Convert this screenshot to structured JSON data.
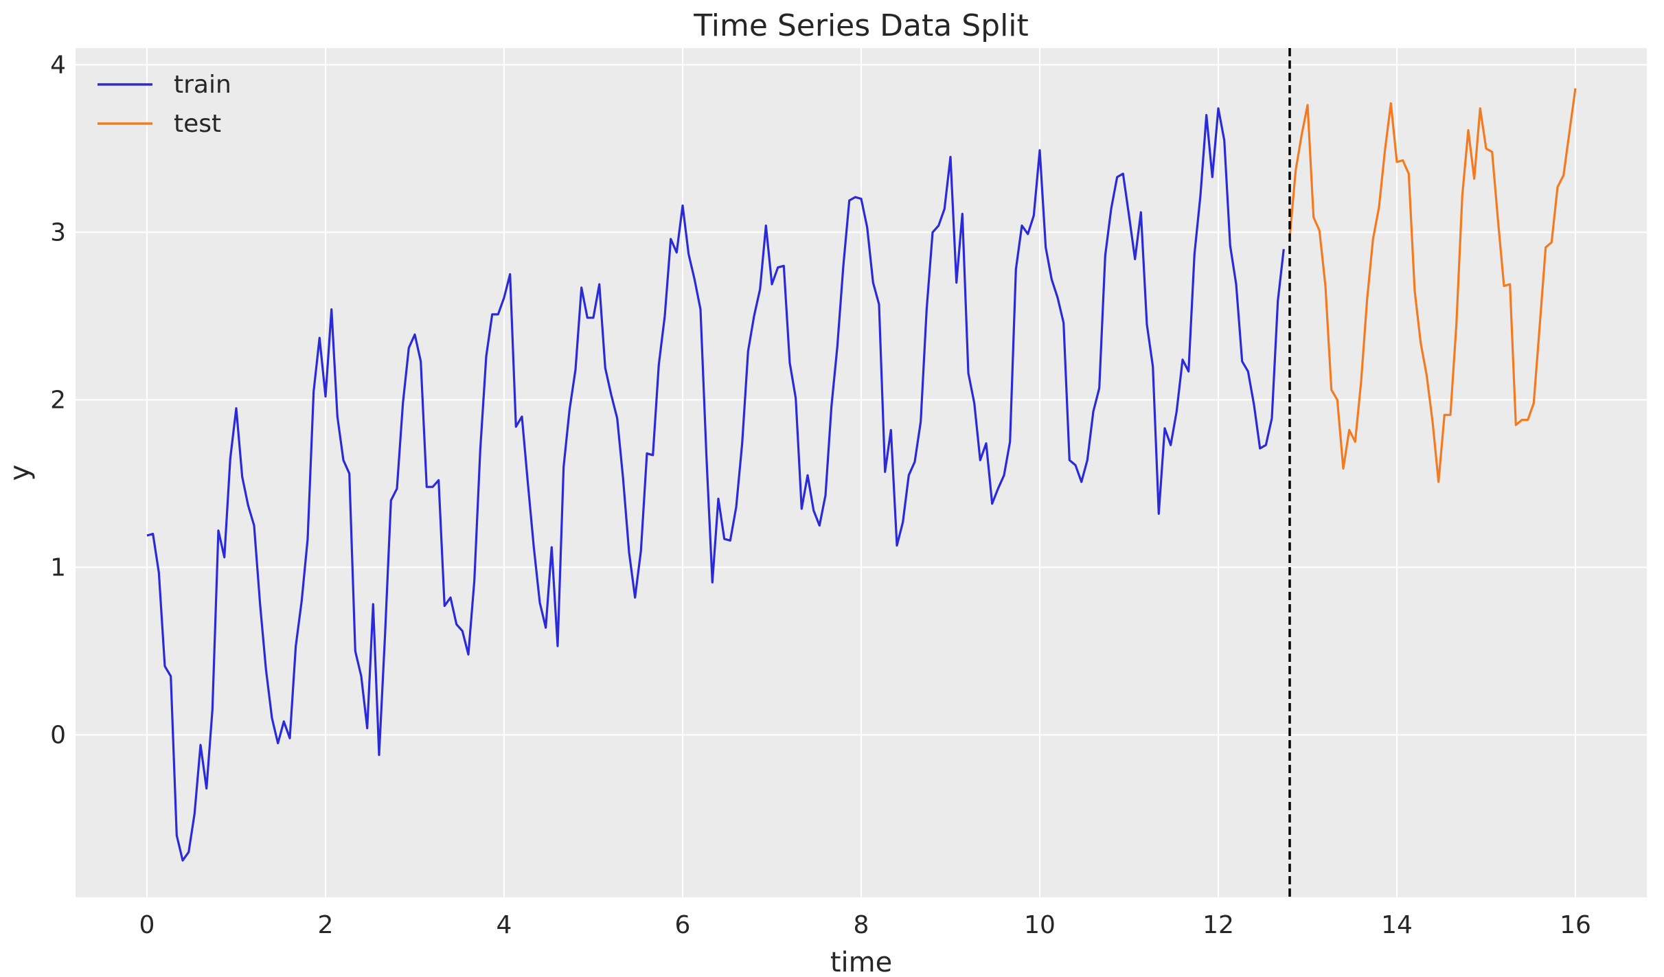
{
  "chart_data": {
    "type": "line",
    "title": "Time Series Data Split",
    "xlabel": "time",
    "ylabel": "y",
    "xlim": [
      -0.8,
      16.8
    ],
    "ylim": [
      -0.97,
      4.1
    ],
    "xticks": [
      0,
      2,
      4,
      6,
      8,
      10,
      12,
      14,
      16
    ],
    "yticks": [
      0,
      1,
      2,
      3,
      4
    ],
    "grid": true,
    "legend_position": "upper-left",
    "split_line": {
      "x": 12.8,
      "style": "dashed",
      "color": "#000000"
    },
    "series": [
      {
        "name": "train",
        "color": "#2a2ad8",
        "points": [
          [
            0.0,
            1.19
          ],
          [
            0.067,
            1.2
          ],
          [
            0.133,
            0.97
          ],
          [
            0.2,
            0.41
          ],
          [
            0.267,
            0.35
          ],
          [
            0.333,
            -0.6
          ],
          [
            0.4,
            -0.75
          ],
          [
            0.467,
            -0.7
          ],
          [
            0.533,
            -0.47
          ],
          [
            0.6,
            -0.06
          ],
          [
            0.667,
            -0.32
          ],
          [
            0.733,
            0.15
          ],
          [
            0.8,
            1.22
          ],
          [
            0.867,
            1.06
          ],
          [
            0.933,
            1.65
          ],
          [
            1.0,
            1.95
          ],
          [
            1.067,
            1.54
          ],
          [
            1.133,
            1.37
          ],
          [
            1.2,
            1.25
          ],
          [
            1.267,
            0.78
          ],
          [
            1.333,
            0.39
          ],
          [
            1.4,
            0.1
          ],
          [
            1.467,
            -0.05
          ],
          [
            1.533,
            0.08
          ],
          [
            1.6,
            -0.02
          ],
          [
            1.667,
            0.53
          ],
          [
            1.733,
            0.8
          ],
          [
            1.8,
            1.17
          ],
          [
            1.867,
            2.05
          ],
          [
            1.933,
            2.37
          ],
          [
            2.0,
            2.02
          ],
          [
            2.067,
            2.54
          ],
          [
            2.133,
            1.9
          ],
          [
            2.2,
            1.64
          ],
          [
            2.267,
            1.56
          ],
          [
            2.333,
            0.5
          ],
          [
            2.4,
            0.35
          ],
          [
            2.467,
            0.04
          ],
          [
            2.533,
            0.78
          ],
          [
            2.6,
            -0.12
          ],
          [
            2.667,
            0.6
          ],
          [
            2.733,
            1.4
          ],
          [
            2.8,
            1.47
          ],
          [
            2.867,
            1.98
          ],
          [
            2.933,
            2.31
          ],
          [
            3.0,
            2.39
          ],
          [
            3.067,
            2.23
          ],
          [
            3.133,
            1.48
          ],
          [
            3.2,
            1.48
          ],
          [
            3.267,
            1.52
          ],
          [
            3.333,
            0.77
          ],
          [
            3.4,
            0.82
          ],
          [
            3.467,
            0.66
          ],
          [
            3.533,
            0.62
          ],
          [
            3.6,
            0.48
          ],
          [
            3.667,
            0.92
          ],
          [
            3.733,
            1.7
          ],
          [
            3.8,
            2.26
          ],
          [
            3.867,
            2.51
          ],
          [
            3.933,
            2.51
          ],
          [
            4.0,
            2.61
          ],
          [
            4.067,
            2.75
          ],
          [
            4.133,
            1.84
          ],
          [
            4.2,
            1.9
          ],
          [
            4.267,
            1.5
          ],
          [
            4.333,
            1.12
          ],
          [
            4.4,
            0.79
          ],
          [
            4.467,
            0.64
          ],
          [
            4.533,
            1.12
          ],
          [
            4.6,
            0.53
          ],
          [
            4.667,
            1.6
          ],
          [
            4.733,
            1.94
          ],
          [
            4.8,
            2.18
          ],
          [
            4.867,
            2.67
          ],
          [
            4.933,
            2.49
          ],
          [
            5.0,
            2.49
          ],
          [
            5.067,
            2.69
          ],
          [
            5.133,
            2.19
          ],
          [
            5.2,
            2.03
          ],
          [
            5.267,
            1.89
          ],
          [
            5.333,
            1.53
          ],
          [
            5.4,
            1.09
          ],
          [
            5.467,
            0.82
          ],
          [
            5.533,
            1.1
          ],
          [
            5.6,
            1.68
          ],
          [
            5.667,
            1.67
          ],
          [
            5.733,
            2.21
          ],
          [
            5.8,
            2.5
          ],
          [
            5.867,
            2.96
          ],
          [
            5.933,
            2.88
          ],
          [
            6.0,
            3.16
          ],
          [
            6.067,
            2.87
          ],
          [
            6.133,
            2.72
          ],
          [
            6.2,
            2.54
          ],
          [
            6.267,
            1.66
          ],
          [
            6.333,
            0.91
          ],
          [
            6.4,
            1.41
          ],
          [
            6.467,
            1.17
          ],
          [
            6.533,
            1.16
          ],
          [
            6.6,
            1.36
          ],
          [
            6.667,
            1.74
          ],
          [
            6.733,
            2.29
          ],
          [
            6.8,
            2.5
          ],
          [
            6.867,
            2.66
          ],
          [
            6.933,
            3.04
          ],
          [
            7.0,
            2.69
          ],
          [
            7.067,
            2.79
          ],
          [
            7.133,
            2.8
          ],
          [
            7.2,
            2.22
          ],
          [
            7.267,
            2.01
          ],
          [
            7.333,
            1.35
          ],
          [
            7.4,
            1.55
          ],
          [
            7.467,
            1.34
          ],
          [
            7.533,
            1.25
          ],
          [
            7.6,
            1.43
          ],
          [
            7.667,
            1.96
          ],
          [
            7.733,
            2.32
          ],
          [
            7.8,
            2.8
          ],
          [
            7.867,
            3.19
          ],
          [
            7.933,
            3.21
          ],
          [
            8.0,
            3.2
          ],
          [
            8.067,
            3.03
          ],
          [
            8.133,
            2.7
          ],
          [
            8.2,
            2.57
          ],
          [
            8.267,
            1.57
          ],
          [
            8.333,
            1.82
          ],
          [
            8.4,
            1.13
          ],
          [
            8.467,
            1.27
          ],
          [
            8.533,
            1.55
          ],
          [
            8.6,
            1.63
          ],
          [
            8.667,
            1.87
          ],
          [
            8.733,
            2.54
          ],
          [
            8.8,
            3.0
          ],
          [
            8.867,
            3.04
          ],
          [
            8.933,
            3.14
          ],
          [
            9.0,
            3.45
          ],
          [
            9.067,
            2.7
          ],
          [
            9.133,
            3.11
          ],
          [
            9.2,
            2.16
          ],
          [
            9.267,
            1.98
          ],
          [
            9.333,
            1.64
          ],
          [
            9.4,
            1.74
          ],
          [
            9.467,
            1.38
          ],
          [
            9.533,
            1.47
          ],
          [
            9.6,
            1.55
          ],
          [
            9.667,
            1.75
          ],
          [
            9.733,
            2.78
          ],
          [
            9.8,
            3.04
          ],
          [
            9.867,
            2.99
          ],
          [
            9.933,
            3.1
          ],
          [
            10.0,
            3.49
          ],
          [
            10.067,
            2.91
          ],
          [
            10.133,
            2.72
          ],
          [
            10.2,
            2.61
          ],
          [
            10.267,
            2.46
          ],
          [
            10.333,
            1.64
          ],
          [
            10.4,
            1.61
          ],
          [
            10.467,
            1.51
          ],
          [
            10.533,
            1.64
          ],
          [
            10.6,
            1.93
          ],
          [
            10.667,
            2.07
          ],
          [
            10.733,
            2.86
          ],
          [
            10.8,
            3.14
          ],
          [
            10.867,
            3.33
          ],
          [
            10.933,
            3.35
          ],
          [
            11.0,
            3.1
          ],
          [
            11.067,
            2.84
          ],
          [
            11.133,
            3.12
          ],
          [
            11.2,
            2.45
          ],
          [
            11.267,
            2.2
          ],
          [
            11.333,
            1.32
          ],
          [
            11.4,
            1.83
          ],
          [
            11.467,
            1.73
          ],
          [
            11.533,
            1.93
          ],
          [
            11.6,
            2.24
          ],
          [
            11.667,
            2.17
          ],
          [
            11.733,
            2.87
          ],
          [
            11.8,
            3.22
          ],
          [
            11.867,
            3.7
          ],
          [
            11.933,
            3.33
          ],
          [
            12.0,
            3.74
          ],
          [
            12.067,
            3.55
          ],
          [
            12.133,
            2.92
          ],
          [
            12.2,
            2.69
          ],
          [
            12.267,
            2.23
          ],
          [
            12.333,
            2.17
          ],
          [
            12.4,
            1.97
          ],
          [
            12.467,
            1.71
          ],
          [
            12.533,
            1.73
          ],
          [
            12.6,
            1.89
          ],
          [
            12.667,
            2.59
          ],
          [
            12.733,
            2.9
          ]
        ]
      },
      {
        "name": "test",
        "color": "#f47a20",
        "points": [
          [
            12.8,
            2.97
          ],
          [
            12.867,
            3.37
          ],
          [
            12.933,
            3.58
          ],
          [
            13.0,
            3.76
          ],
          [
            13.067,
            3.09
          ],
          [
            13.133,
            3.01
          ],
          [
            13.2,
            2.68
          ],
          [
            13.267,
            2.06
          ],
          [
            13.333,
            2.0
          ],
          [
            13.4,
            1.59
          ],
          [
            13.467,
            1.82
          ],
          [
            13.533,
            1.75
          ],
          [
            13.6,
            2.11
          ],
          [
            13.667,
            2.6
          ],
          [
            13.733,
            2.96
          ],
          [
            13.8,
            3.15
          ],
          [
            13.867,
            3.49
          ],
          [
            13.933,
            3.77
          ],
          [
            14.0,
            3.42
          ],
          [
            14.067,
            3.43
          ],
          [
            14.133,
            3.35
          ],
          [
            14.2,
            2.65
          ],
          [
            14.267,
            2.34
          ],
          [
            14.333,
            2.15
          ],
          [
            14.4,
            1.87
          ],
          [
            14.467,
            1.51
          ],
          [
            14.533,
            1.91
          ],
          [
            14.6,
            1.91
          ],
          [
            14.667,
            2.45
          ],
          [
            14.733,
            3.22
          ],
          [
            14.8,
            3.61
          ],
          [
            14.867,
            3.32
          ],
          [
            14.933,
            3.74
          ],
          [
            15.0,
            3.5
          ],
          [
            15.067,
            3.48
          ],
          [
            15.133,
            3.07
          ],
          [
            15.2,
            2.68
          ],
          [
            15.267,
            2.69
          ],
          [
            15.333,
            1.85
          ],
          [
            15.4,
            1.88
          ],
          [
            15.467,
            1.88
          ],
          [
            15.533,
            1.98
          ],
          [
            15.6,
            2.44
          ],
          [
            15.667,
            2.91
          ],
          [
            15.733,
            2.94
          ],
          [
            15.8,
            3.27
          ],
          [
            15.867,
            3.34
          ],
          [
            16.0,
            3.86
          ]
        ]
      }
    ]
  }
}
